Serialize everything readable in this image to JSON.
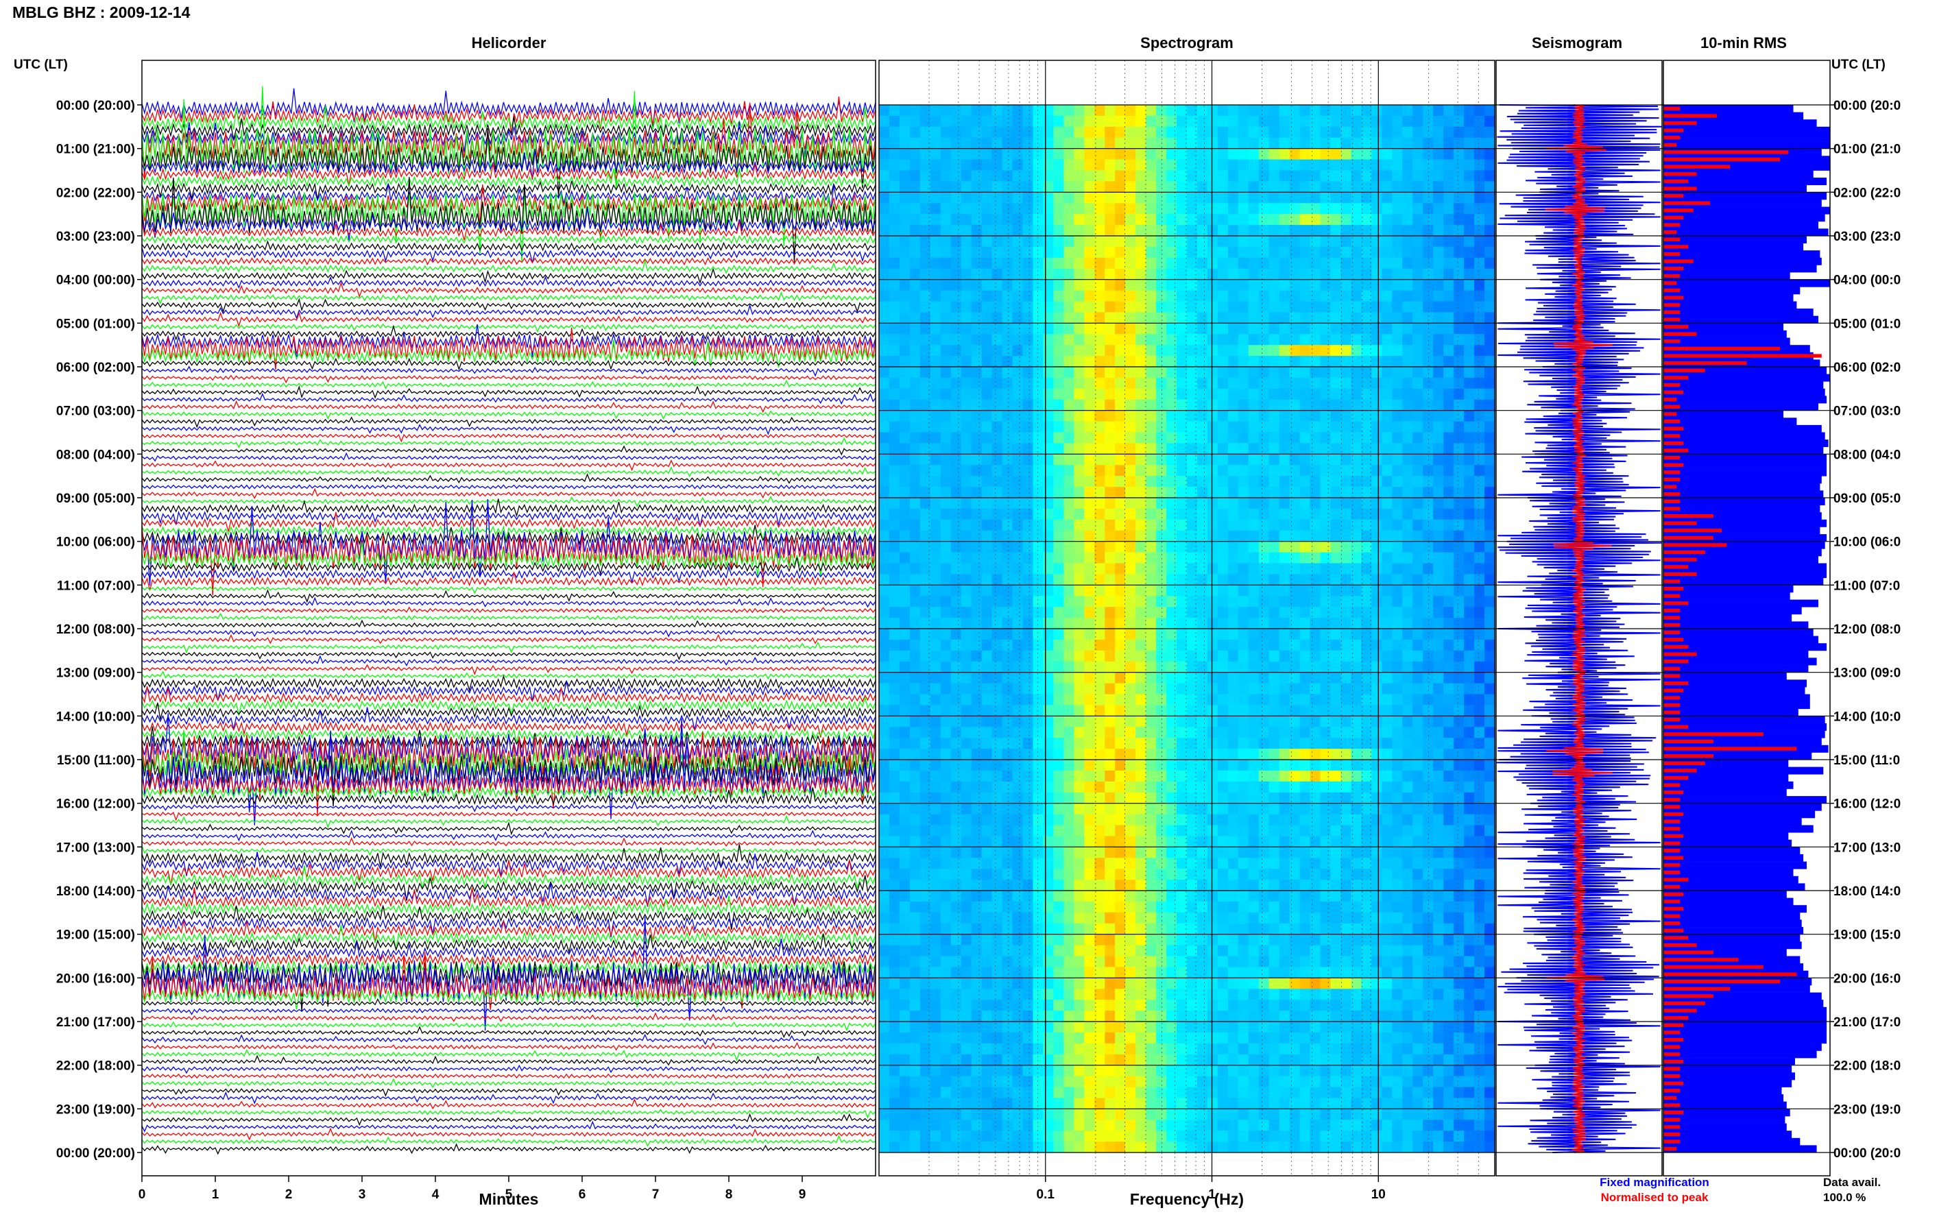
{
  "chart_data": {
    "type": "heatmap",
    "title": "MBLG BHZ : 2009-12-14",
    "panels": {
      "helicorder": {
        "title": "Helicorder",
        "xlabel": "Minutes",
        "x_ticks": [
          "0",
          "1",
          "2",
          "3",
          "4",
          "5",
          "6",
          "7",
          "8",
          "9"
        ],
        "xlim": [
          0,
          10
        ],
        "trace_colors": [
          "#0000ff",
          "#ff0000",
          "#00ff00",
          "#000000"
        ],
        "rows_per_hour": 6
      },
      "spectrogram": {
        "title": "Spectrogram",
        "xlabel": "Frequency (Hz)",
        "scale": "log",
        "x_ticks": [
          "0.1",
          "1",
          "10"
        ],
        "xlim": [
          0.01,
          50
        ],
        "colormap": [
          "#0000ff",
          "#00aaff",
          "#00ffff",
          "#ffff00",
          "#ff0000"
        ]
      },
      "seismogram": {
        "title": "Seismogram",
        "legend": [
          {
            "label": "Fixed magnification",
            "color": "#0000ff"
          },
          {
            "label": "Normalised to peak",
            "color": "#ff0000"
          }
        ]
      },
      "rms": {
        "title": "10-min RMS",
        "data_avail_label": "Data avail.",
        "data_avail_value": "100.0 %"
      }
    },
    "y_axis": {
      "label": "UTC (LT)",
      "ticks": [
        "00:00 (20:00)",
        "01:00 (21:00)",
        "02:00 (22:00)",
        "03:00 (23:00)",
        "04:00 (00:00)",
        "05:00 (01:00)",
        "06:00 (02:00)",
        "07:00 (03:00)",
        "08:00 (04:00)",
        "09:00 (05:00)",
        "10:00 (06:00)",
        "11:00 (07:00)",
        "12:00 (08:00)",
        "13:00 (09:00)",
        "14:00 (10:00)",
        "15:00 (11:00)",
        "16:00 (12:00)",
        "17:00 (13:00)",
        "18:00 (14:00)",
        "19:00 (15:00)",
        "20:00 (16:00)",
        "21:00 (17:00)",
        "22:00 (18:00)",
        "23:00 (19:00)",
        "00:00 (20:00)"
      ],
      "right_ticks": [
        "00:00 (20:0",
        "01:00 (21:0",
        "02:00 (22:0",
        "03:00 (23:0",
        "04:00 (00:0",
        "05:00 (01:0",
        "06:00 (02:0",
        "07:00 (03:0",
        "08:00 (04:0",
        "09:00 (05:0",
        "10:00 (06:0",
        "11:00 (07:0",
        "12:00 (08:0",
        "13:00 (09:0",
        "14:00 (10:0",
        "15:00 (11:0",
        "16:00 (12:0",
        "17:00 (13:0",
        "18:00 (14:0",
        "19:00 (15:0",
        "20:00 (16:0",
        "21:00 (17:0",
        "22:00 (18:0",
        "23:00 (19:0",
        "00:00 (20:0"
      ]
    },
    "events_utc_hours": [
      1.0,
      2.4,
      5.5,
      10.1,
      14.8,
      15.3,
      20.0
    ],
    "rms_10min_relative": [
      0.78,
      0.84,
      0.92,
      1.0,
      1.0,
      1.0,
      0.95,
      1.0,
      1.0,
      0.9,
      0.98,
      0.86,
      0.98,
      0.95,
      1.0,
      0.97,
      0.93,
      0.99,
      0.86,
      0.84,
      0.94,
      0.95,
      0.92,
      0.76,
      1.0,
      0.82,
      0.78,
      0.8,
      0.9,
      0.93,
      0.72,
      0.74,
      0.76,
      0.88,
      0.9,
      0.94,
      0.98,
      1.0,
      0.96,
      0.97,
      0.98,
      0.93,
      0.72,
      0.8,
      0.95,
      0.97,
      0.99,
      0.96,
      0.98,
      0.98,
      0.98,
      0.95,
      0.94,
      0.96,
      0.97,
      0.94,
      0.95,
      0.98,
      0.94,
      0.98,
      0.97,
      0.95,
      0.93,
      0.98,
      0.98,
      0.96,
      0.78,
      0.76,
      0.93,
      0.83,
      0.77,
      0.87,
      0.9,
      0.93,
      0.98,
      0.87,
      0.92,
      0.87,
      0.74,
      0.86,
      0.85,
      0.88,
      0.88,
      0.81,
      0.97,
      0.98,
      0.97,
      0.95,
      0.99,
      0.89,
      0.75,
      0.96,
      0.75,
      0.78,
      0.74,
      0.98,
      0.95,
      0.91,
      0.83,
      0.9,
      0.75,
      0.77,
      0.82,
      0.84,
      0.86,
      0.78,
      0.81,
      0.85,
      0.74,
      0.78,
      0.86,
      0.82,
      0.83,
      0.84,
      0.82,
      0.83,
      0.74,
      0.82,
      0.84,
      0.87,
      0.89,
      0.88,
      0.95,
      0.96,
      0.98,
      0.98,
      0.98,
      0.98,
      0.98,
      0.95,
      0.92,
      0.79,
      0.77,
      0.79,
      0.77,
      0.71,
      0.72,
      0.74,
      0.76,
      0.73,
      0.74,
      0.77,
      0.82,
      0.92
    ],
    "rms_peak_relative": [
      0.1,
      0.32,
      0.2,
      0.12,
      0.1,
      0.08,
      0.75,
      0.7,
      0.4,
      0.2,
      0.15,
      0.2,
      0.12,
      0.28,
      0.18,
      0.12,
      0.1,
      0.08,
      0.1,
      0.15,
      0.1,
      0.18,
      0.12,
      0.1,
      0.08,
      0.1,
      0.12,
      0.1,
      0.1,
      0.1,
      0.15,
      0.2,
      0.1,
      0.7,
      0.95,
      0.5,
      0.25,
      0.15,
      0.1,
      0.12,
      0.08,
      0.1,
      0.08,
      0.1,
      0.12,
      0.1,
      0.12,
      0.15,
      0.1,
      0.12,
      0.1,
      0.1,
      0.08,
      0.1,
      0.1,
      0.1,
      0.3,
      0.2,
      0.35,
      0.3,
      0.38,
      0.25,
      0.2,
      0.15,
      0.2,
      0.1,
      0.12,
      0.1,
      0.15,
      0.1,
      0.1,
      0.1,
      0.1,
      0.12,
      0.15,
      0.2,
      0.15,
      0.1,
      0.1,
      0.15,
      0.12,
      0.1,
      0.1,
      0.1,
      0.1,
      0.15,
      0.6,
      0.3,
      0.8,
      0.3,
      0.25,
      0.2,
      0.15,
      0.1,
      0.12,
      0.1,
      0.1,
      0.12,
      0.1,
      0.1,
      0.12,
      0.1,
      0.1,
      0.12,
      0.1,
      0.1,
      0.15,
      0.1,
      0.12,
      0.1,
      0.12,
      0.1,
      0.1,
      0.12,
      0.15,
      0.2,
      0.3,
      0.45,
      0.6,
      0.8,
      0.7,
      0.4,
      0.3,
      0.25,
      0.2,
      0.15,
      0.12,
      0.1,
      0.12,
      0.1,
      0.1,
      0.12,
      0.1,
      0.1,
      0.12,
      0.1,
      0.08,
      0.1,
      0.12,
      0.1,
      0.1,
      0.1,
      0.1,
      0.08
    ]
  }
}
